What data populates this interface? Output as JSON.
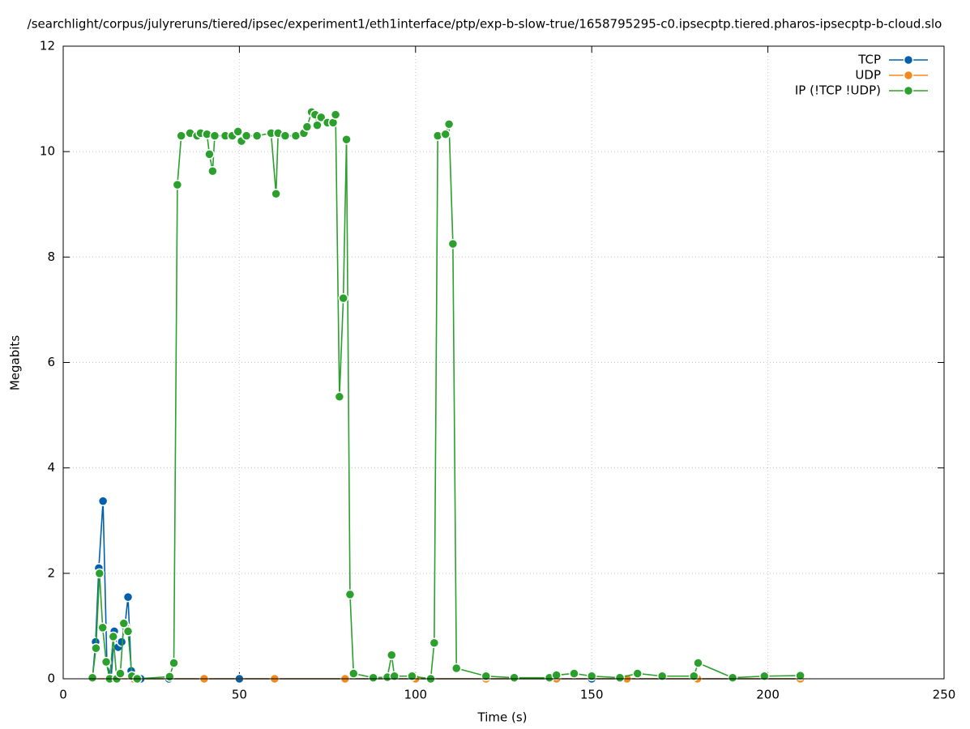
{
  "chart_data": {
    "type": "line",
    "title": "/searchlight/corpus/julyreruns/tiered/ipsec/experiment1/eth1interface/ptp/exp-b-slow-true/1658795295-c0.ipsecptp.tiered.pharos-ipsecptp-b-cloud.slo",
    "x_label": "Time (s)",
    "y_label": "Megabits",
    "xlim": [
      0,
      250
    ],
    "xticks": [
      0,
      50,
      100,
      150,
      200,
      250
    ],
    "ylim": [
      0,
      12
    ],
    "yticks": [
      0,
      2,
      4,
      6,
      8,
      10,
      12
    ],
    "grid": true,
    "legend": "top-right",
    "series": [
      {
        "name": "TCP",
        "color": "#0060ad",
        "x": [
          8.3,
          9.2,
          10.1,
          11.3,
          12.4,
          13.6,
          14.5,
          15.6,
          16.6,
          17.5,
          18.4,
          19.3,
          22,
          30,
          50,
          80,
          100,
          150,
          209.2
        ],
        "values": [
          0,
          0.7,
          2.1,
          3.37,
          0.3,
          0,
          0.9,
          0.6,
          0.7,
          1.0,
          1.55,
          0.15,
          0,
          0,
          0,
          0,
          0,
          0,
          0
        ]
      },
      {
        "name": "UDP",
        "color": "#f28a1e",
        "x": [
          8.3,
          20,
          40,
          60,
          80,
          100,
          120,
          140,
          160,
          180,
          209.2
        ],
        "values": [
          0,
          0,
          0,
          0,
          0,
          0,
          0,
          0,
          0,
          0,
          0
        ]
      },
      {
        "name": "IP (!TCP  !UDP)",
        "color": "#2ca02c",
        "x": [
          8.3,
          9.3,
          10.3,
          11.2,
          12.2,
          13.2,
          14.2,
          15.2,
          16.2,
          17.2,
          18.4,
          19.5,
          21,
          30.2,
          31.4,
          32.4,
          33.5,
          36,
          38,
          39,
          40.8,
          41.5,
          42.4,
          43,
          46,
          48,
          49.6,
          50.6,
          52,
          55,
          59,
          60.4,
          61,
          63,
          66,
          68.3,
          69.2,
          70.5,
          71.5,
          72.1,
          73.2,
          75,
          76.6,
          77.3,
          78.4,
          79.5,
          80.4,
          81.4,
          82.4,
          88,
          92,
          93.2,
          94,
          99,
          104.3,
          105.3,
          106.3,
          108.5,
          109.5,
          110.6,
          111.6,
          120,
          128,
          138,
          140,
          145,
          150,
          158,
          163,
          170,
          179,
          180.2,
          190,
          199,
          209.2
        ],
        "values": [
          0.02,
          0.58,
          2.0,
          0.97,
          0.32,
          0,
          0.8,
          0,
          0.1,
          1.05,
          0.9,
          0.05,
          0,
          0.04,
          0.3,
          9.37,
          10.3,
          10.35,
          10.3,
          10.35,
          10.33,
          9.95,
          9.63,
          10.3,
          10.3,
          10.3,
          10.38,
          10.2,
          10.3,
          10.3,
          10.35,
          9.2,
          10.35,
          10.3,
          10.3,
          10.35,
          10.47,
          10.75,
          10.7,
          10.5,
          10.65,
          10.55,
          10.55,
          10.7,
          5.35,
          7.22,
          10.23,
          1.6,
          0.1,
          0.02,
          0.03,
          0.45,
          0.05,
          0.05,
          0,
          0.68,
          10.3,
          10.33,
          10.52,
          8.25,
          0.2,
          0.05,
          0.02,
          0.02,
          0.07,
          0.1,
          0.05,
          0.02,
          0.1,
          0.05,
          0.05,
          0.3,
          0.02,
          0.05,
          0.06
        ]
      }
    ]
  }
}
